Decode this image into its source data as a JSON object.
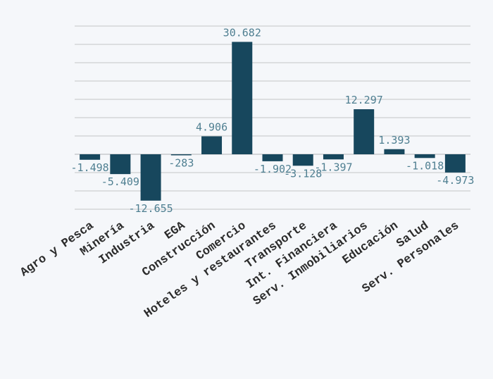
{
  "chart_data": {
    "type": "bar",
    "categories": [
      "Agro y Pesca",
      "Minería",
      "Industria",
      "EGA",
      "Construcción",
      "Comercio",
      "Hoteles y restaurantes",
      "Transporte",
      "Int. Financiera",
      "Serv. Inmobiliarios",
      "Educación",
      "Salud",
      "Serv. Personales"
    ],
    "values": [
      -1498,
      -5409,
      -12655,
      -283,
      4906,
      30682,
      -1902,
      -3128,
      -1397,
      12297,
      1393,
      -1018,
      -4973
    ],
    "value_labels": [
      "-1.498",
      "-5.409",
      "-12.655",
      "-283",
      "4.906",
      "30.682",
      "-1.902",
      "-3.128",
      "-1.397",
      "12.297",
      "1.393",
      "-1.018",
      "-4.973"
    ],
    "title": "",
    "xlabel": "",
    "ylabel": "",
    "ylim": [
      -15000,
      35000
    ],
    "grid": true,
    "colors": {
      "bar": "#17475d",
      "value_label": "#4f7f91",
      "grid": "#d3d5d8",
      "background": "#f5f7fa"
    }
  }
}
